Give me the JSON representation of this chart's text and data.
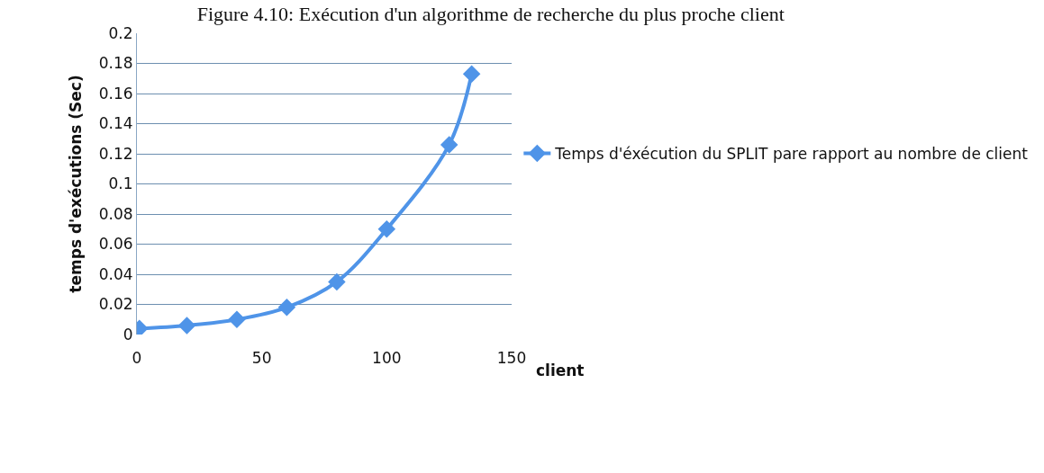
{
  "chart_data": {
    "type": "line",
    "title": "Figure 4.10: Exécution d'un algorithme de recherche du plus proche client",
    "xlabel": "client",
    "ylabel": "temps d'exécutions (Sec)",
    "x": [
      1,
      20,
      40,
      60,
      80,
      100,
      125,
      134
    ],
    "series": [
      {
        "name": "Temps d'éxécution du SPLIT pare rapport au nombre de client",
        "color": "#4f94e8",
        "values": [
          0.004,
          0.006,
          0.01,
          0.018,
          0.035,
          0.07,
          0.126,
          0.173
        ]
      }
    ],
    "xlim": [
      0,
      150
    ],
    "xticks": [
      0,
      50,
      100,
      150
    ],
    "ylim": [
      0,
      0.2
    ],
    "yticks": [
      0,
      {
        "value": 0.02,
        "label": "0.02"
      },
      {
        "value": 0.04,
        "label": "0.04"
      },
      {
        "value": 0.06,
        "label": "0.06"
      },
      {
        "value": 0.08,
        "label": "0.08"
      },
      {
        "value": 0.1,
        "label": "0.1"
      },
      {
        "value": 0.12,
        "label": "0.12"
      },
      {
        "value": 0.14,
        "label": "0.14"
      },
      {
        "value": 0.16,
        "label": "0.16"
      },
      {
        "value": 0.18,
        "label": "0.18"
      },
      {
        "value": 0.2,
        "label": "0.2"
      }
    ],
    "grid": "y",
    "legend": "right",
    "marker": "diamond",
    "line_style": "solid"
  }
}
